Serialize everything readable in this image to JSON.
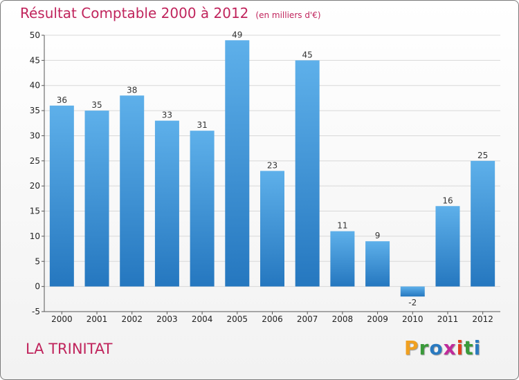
{
  "chart_data": {
    "type": "bar",
    "title": "Résultat Comptable 2000 à 2012",
    "subtitle": "(en milliers d'€)",
    "categories": [
      "2000",
      "2001",
      "2002",
      "2003",
      "2004",
      "2005",
      "2006",
      "2007",
      "2008",
      "2009",
      "2010",
      "2011",
      "2012"
    ],
    "values": [
      36,
      35,
      38,
      33,
      31,
      49,
      23,
      45,
      11,
      9,
      -2,
      16,
      25
    ],
    "data_labels": [
      "36",
      "35",
      "38",
      "33",
      "31",
      "49",
      "23",
      "45",
      "11",
      "9",
      "-2",
      "16",
      "25"
    ],
    "yticks": [
      -5,
      0,
      5,
      10,
      15,
      20,
      25,
      30,
      35,
      40,
      45,
      50
    ],
    "ylim": [
      -5,
      50
    ],
    "xlabel": "",
    "ylabel": "",
    "grid": true
  },
  "footer": {
    "commune": "LA TRINITAT",
    "logo": [
      "P",
      "r",
      "o",
      "x",
      "i",
      "t",
      "i"
    ]
  },
  "colors": {
    "bar_top": "#5eb0ea",
    "bar_bottom": "#2577bf",
    "title": "#c0245c",
    "grid": "#d8d8d8",
    "logo": [
      "#f0a020",
      "#3a9a3a",
      "#2a7ac0",
      "#c02a9a",
      "#e04020",
      "#3a9a3a",
      "#2a7ac0"
    ]
  }
}
